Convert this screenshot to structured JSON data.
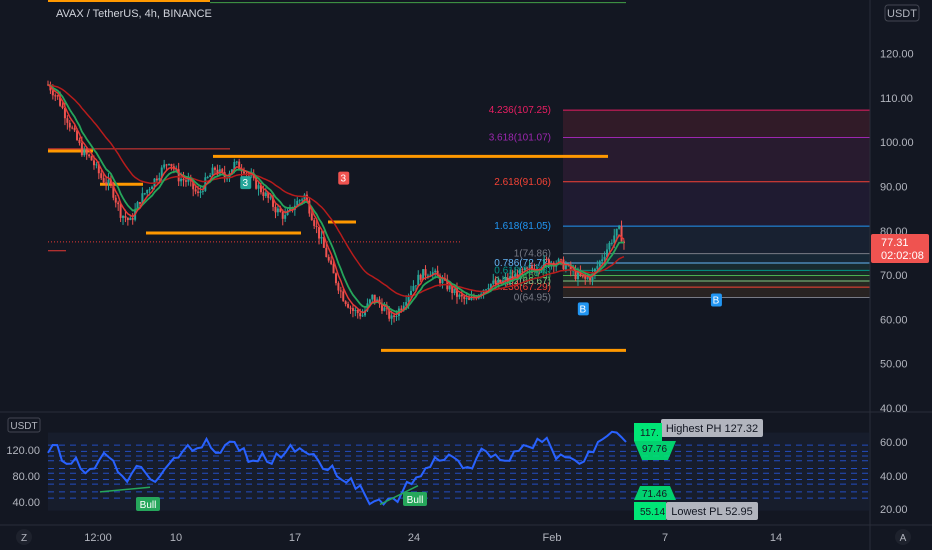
{
  "header": {
    "symbol_title": "AVAX / TetherUS, 4h, BINANCE",
    "currency_badge": "USDT"
  },
  "colors": {
    "background": "#131722",
    "up": "#26a69a",
    "down": "#ef5350",
    "ema_fast": "#e53935",
    "ema_mid": "#26a65b",
    "ema_slow": "#b71c1c",
    "level_line": "#ff9800",
    "oscillator": "#2962ff",
    "price_badge": "#ef5350"
  },
  "chart_data": [
    {
      "type": "candlestick",
      "title": "AVAX / TetherUS, 4h, BINANCE",
      "y_axis_label": "USDT",
      "y_ticks": [
        40,
        50,
        60,
        70,
        80,
        90,
        100,
        110,
        120
      ],
      "y_tick_labels": [
        "40.00",
        "50.00",
        "60.00",
        "70.00",
        "80.00",
        "90.00",
        "100.00",
        "110.00",
        "120.00"
      ],
      "y_range": [
        37.5,
        133
      ],
      "x_tick_labels": [
        "12:00",
        "10",
        "17",
        "24",
        "Feb",
        "7",
        "14"
      ],
      "current_price": "77.31",
      "countdown": "02:02:08",
      "price_path": [
        [
          0,
          113
        ],
        [
          8,
          110
        ],
        [
          18,
          104
        ],
        [
          28,
          98
        ],
        [
          36,
          96
        ],
        [
          44,
          92
        ],
        [
          52,
          90
        ],
        [
          60,
          84
        ],
        [
          68,
          82
        ],
        [
          76,
          87
        ],
        [
          84,
          90
        ],
        [
          92,
          93
        ],
        [
          100,
          96
        ],
        [
          108,
          92
        ],
        [
          116,
          91
        ],
        [
          124,
          88
        ],
        [
          130,
          91
        ],
        [
          138,
          94
        ],
        [
          146,
          92
        ],
        [
          154,
          95
        ],
        [
          162,
          94
        ],
        [
          170,
          91
        ],
        [
          180,
          88
        ],
        [
          188,
          85
        ],
        [
          196,
          83
        ],
        [
          204,
          86
        ],
        [
          212,
          88
        ],
        [
          220,
          82
        ],
        [
          228,
          76
        ],
        [
          236,
          70
        ],
        [
          244,
          65
        ],
        [
          252,
          62
        ],
        [
          260,
          61
        ],
        [
          268,
          65
        ],
        [
          276,
          63
        ],
        [
          284,
          60
        ],
        [
          292,
          63
        ],
        [
          300,
          67
        ],
        [
          308,
          70
        ],
        [
          316,
          71
        ],
        [
          324,
          69
        ],
        [
          332,
          67
        ],
        [
          340,
          65
        ],
        [
          348,
          64
        ],
        [
          356,
          66
        ],
        [
          364,
          68
        ],
        [
          372,
          68
        ],
        [
          380,
          69
        ],
        [
          388,
          70
        ],
        [
          396,
          71
        ],
        [
          404,
          72
        ],
        [
          412,
          73
        ],
        [
          420,
          73
        ],
        [
          428,
          72
        ],
        [
          436,
          70
        ],
        [
          444,
          69
        ],
        [
          450,
          70
        ],
        [
          456,
          73
        ],
        [
          462,
          76
        ],
        [
          468,
          79
        ],
        [
          472,
          80
        ],
        [
          476,
          77.3
        ]
      ],
      "horizontal_levels": [
        {
          "y": 132,
          "x_range": [
            0,
            162
          ]
        },
        {
          "y": 98,
          "x_range": [
            0,
            45
          ]
        },
        {
          "y": 96.8,
          "x_range": [
            165,
            560
          ]
        },
        {
          "y": 90.5,
          "x_range": [
            52,
            95
          ]
        },
        {
          "y": 82,
          "x_range": [
            280,
            308
          ]
        },
        {
          "y": 79.5,
          "x_range": [
            98,
            253
          ]
        },
        {
          "y": 53,
          "x_range": [
            333,
            578
          ]
        }
      ],
      "fibonacci": {
        "levels": [
          {
            "ratio": "0",
            "value": 64.95,
            "label": "0(64.95)"
          },
          {
            "ratio": "0.236",
            "value": 67.29,
            "label": "0.236(67.29)"
          },
          {
            "ratio": "0.382",
            "value": 68.67,
            "label": "0.382(68.67)"
          },
          {
            "ratio": "0.5",
            "value": 69.9,
            "label": "0.5(69.9)"
          },
          {
            "ratio": "0.618",
            "value": 71.08,
            "label": "0.618(71.08)"
          },
          {
            "ratio": "0.786",
            "value": 72.72,
            "label": "0.786(72.72)"
          },
          {
            "ratio": "1",
            "value": 74.86,
            "label": "1(74.86)"
          },
          {
            "ratio": "1.618",
            "value": 81.05,
            "label": "1.618(81.05)"
          },
          {
            "ratio": "2.618",
            "value": 91.06,
            "label": "2.618(91.06)"
          },
          {
            "ratio": "3.618",
            "value": 101.07,
            "label": "3.618(101.07)"
          },
          {
            "ratio": "4.236",
            "value": 107.25,
            "label": "4.236(107.25)"
          }
        ]
      },
      "markers": [
        {
          "label": "3",
          "at": 163,
          "value": 91,
          "color": "#26a69a"
        },
        {
          "label": "3",
          "at": 244,
          "value": 92,
          "color": "#ef5350"
        },
        {
          "label": "B",
          "at": 442,
          "value": 62.5,
          "color": "#2196f3"
        },
        {
          "label": "B",
          "at": 552,
          "value": 64.5,
          "color": "#2196f3"
        }
      ]
    },
    {
      "type": "line",
      "title": "",
      "y_axis_label": "USDT",
      "left_ticks": [
        "120.00",
        "80.00",
        "40.00"
      ],
      "right_ticks": [
        "60.00",
        "40.00",
        "20.00"
      ],
      "y_range": [
        12,
        78
      ],
      "labels": {
        "highest": "Highest PH 127.32",
        "lowest": "Lowest PL 52.95",
        "bull": "Bull",
        "green_top_1": "117.",
        "green_top_2": "97.76",
        "green_bottom_1": "71.46",
        "green_bottom_2": "55.14"
      },
      "series": [
        {
          "values": [
            55,
            60,
            48,
            52,
            42,
            45,
            55,
            50,
            40,
            42,
            46,
            38,
            40,
            48,
            52,
            60,
            58,
            64,
            55,
            60,
            62,
            58,
            50,
            55,
            48,
            52,
            60,
            58,
            54,
            50,
            44,
            40,
            36,
            32,
            28,
            24,
            22,
            26,
            30,
            35,
            40,
            46,
            50,
            54,
            50,
            46,
            52,
            56,
            54,
            50,
            56,
            60,
            58,
            62,
            58,
            54,
            52,
            48,
            56,
            62,
            66,
            68,
            62
          ]
        }
      ]
    }
  ],
  "bottom_bar": {
    "left_icon": "Z",
    "right_icon": "A"
  }
}
